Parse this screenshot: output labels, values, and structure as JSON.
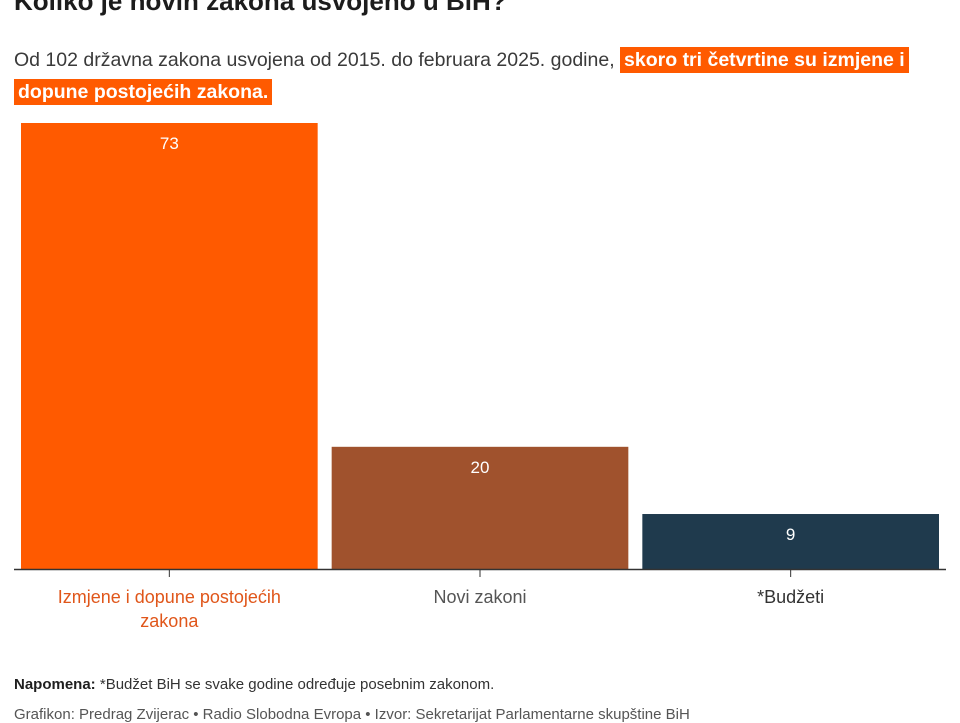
{
  "header": {
    "title": "Koliko je novih zakona usvojeno u BiH?",
    "subtitle_plain": "Od 102 državna zakona usvojena od 2015. do februara 2025. godine,",
    "subtitle_highlight": "skoro tri četvrtine su izmjene i dopune postojećih zakona."
  },
  "chart_data": {
    "type": "bar",
    "categories": [
      "Izmjene i dopune postojećih zakona",
      "Novi zakoni",
      "*Budžeti"
    ],
    "values": [
      73,
      20,
      9
    ],
    "bar_colors": [
      "#ff5a00",
      "#a0522d",
      "#1f3a4d"
    ],
    "category_label_colors": [
      "#e0561a",
      "#555555",
      "#333333"
    ],
    "ylim": [
      0,
      73
    ],
    "grid": false,
    "legend": "none"
  },
  "footer": {
    "note_label": "Napomena:",
    "note_text": "*Budžet BiH se svake godine određuje posebnim zakonom.",
    "credit": "Grafikon: Predrag Zvijerac • Radio Slobodna Evropa • Izvor: Sekretarijat Parlamentarne skupštine BiH"
  }
}
